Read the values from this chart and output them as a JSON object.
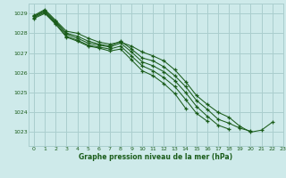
{
  "title": "Graphe pression niveau de la mer (hPa)",
  "background_color": "#ceeaea",
  "grid_color": "#aacece",
  "line_color": "#1a5c1a",
  "xlim": [
    -0.5,
    23
  ],
  "ylim": [
    1022.3,
    1029.5
  ],
  "yticks": [
    1023,
    1024,
    1025,
    1026,
    1027,
    1028,
    1029
  ],
  "xticks": [
    0,
    1,
    2,
    3,
    4,
    5,
    6,
    7,
    8,
    9,
    10,
    11,
    12,
    13,
    14,
    15,
    16,
    17,
    18,
    19,
    20,
    21,
    22,
    23
  ],
  "series": [
    {
      "x": [
        0,
        1,
        2,
        3,
        4,
        5,
        6,
        7,
        8,
        9,
        10,
        11,
        12,
        13,
        14,
        15,
        16,
        17,
        18,
        19,
        20,
        21,
        22
      ],
      "y": [
        1028.9,
        1029.2,
        1028.65,
        1028.1,
        1028.0,
        1027.75,
        1027.55,
        1027.45,
        1027.55,
        1027.35,
        1027.05,
        1026.85,
        1026.6,
        1026.15,
        1025.55,
        1024.85,
        1024.4,
        1024.0,
        1023.75,
        1023.3,
        1023.0,
        1023.1,
        1023.5
      ]
    },
    {
      "x": [
        0,
        1,
        2,
        3,
        4,
        5,
        6,
        7,
        8,
        9,
        10,
        11,
        12,
        13,
        14,
        15,
        16,
        17,
        18,
        19,
        20
      ],
      "y": [
        1028.85,
        1029.15,
        1028.6,
        1028.0,
        1027.85,
        1027.6,
        1027.45,
        1027.35,
        1027.6,
        1027.2,
        1026.75,
        1026.6,
        1026.3,
        1025.85,
        1025.3,
        1024.6,
        1024.15,
        1023.65,
        1023.45,
        1023.2,
        1023.05
      ]
    },
    {
      "x": [
        0,
        1,
        2,
        3,
        4,
        5,
        6,
        7,
        8,
        9,
        10,
        11,
        12,
        13,
        14,
        15,
        16,
        17,
        18
      ],
      "y": [
        1028.85,
        1029.1,
        1028.55,
        1027.95,
        1027.75,
        1027.5,
        1027.4,
        1027.3,
        1027.5,
        1027.05,
        1026.55,
        1026.35,
        1026.05,
        1025.6,
        1025.0,
        1024.3,
        1023.8,
        1023.35,
        1023.15
      ]
    },
    {
      "x": [
        0,
        1,
        2,
        3,
        4,
        5,
        6,
        7,
        8,
        9,
        10,
        11,
        12,
        13,
        14,
        15,
        16
      ],
      "y": [
        1028.8,
        1029.05,
        1028.5,
        1027.85,
        1027.65,
        1027.4,
        1027.3,
        1027.2,
        1027.35,
        1026.85,
        1026.35,
        1026.1,
        1025.75,
        1025.3,
        1024.65,
        1023.95,
        1023.55
      ]
    },
    {
      "x": [
        0,
        1,
        2,
        3,
        4,
        5,
        6,
        7,
        8,
        9,
        10,
        11,
        12,
        13,
        14
      ],
      "y": [
        1028.75,
        1029.0,
        1028.45,
        1027.8,
        1027.6,
        1027.35,
        1027.25,
        1027.1,
        1027.2,
        1026.65,
        1026.1,
        1025.85,
        1025.45,
        1024.95,
        1024.2
      ]
    }
  ]
}
